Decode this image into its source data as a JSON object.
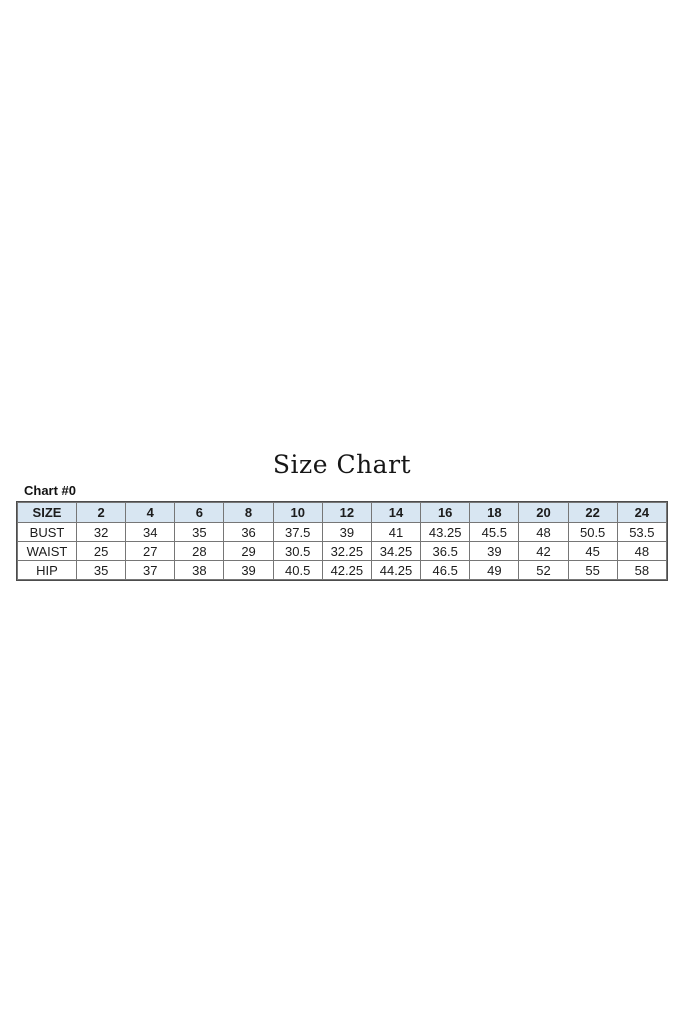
{
  "page": {
    "background": "#ffffff"
  },
  "chart_data": {
    "type": "table",
    "title": "Size Chart",
    "label": "Chart #0",
    "columns": [
      "SIZE",
      "2",
      "4",
      "6",
      "8",
      "10",
      "12",
      "14",
      "16",
      "18",
      "20",
      "22",
      "24"
    ],
    "rows": [
      [
        "BUST",
        "32",
        "34",
        "35",
        "36",
        "37.5",
        "39",
        "41",
        "43.25",
        "45.5",
        "48",
        "50.5",
        "53.5"
      ],
      [
        "WAIST",
        "25",
        "27",
        "28",
        "29",
        "30.5",
        "32.25",
        "34.25",
        "36.5",
        "39",
        "42",
        "45",
        "48"
      ],
      [
        "HIP",
        "35",
        "37",
        "38",
        "39",
        "40.5",
        "42.25",
        "44.25",
        "46.5",
        "49",
        "52",
        "55",
        "58"
      ]
    ],
    "colors": {
      "header_bg": "#d8e6f2",
      "border_inner": "#767676",
      "border_outer": "#4c4c4c",
      "text": "#1c1c1c"
    }
  }
}
